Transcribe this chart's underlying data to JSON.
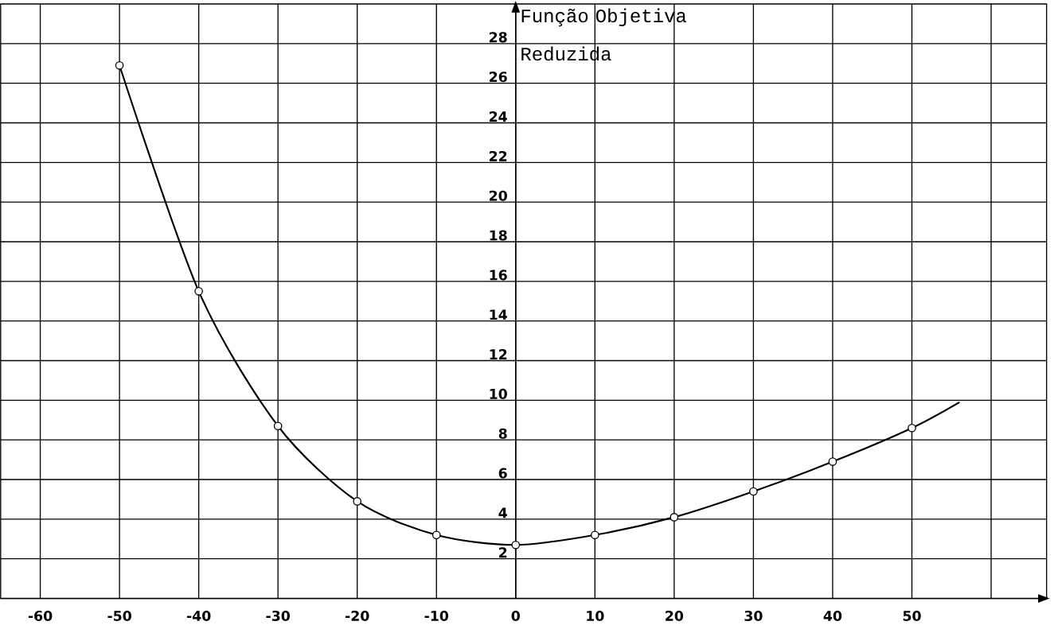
{
  "chart_data": {
    "type": "line",
    "ylabel": "Função Objetiva Reduzida",
    "xlim": [
      -65,
      67
    ],
    "ylim": [
      0,
      30
    ],
    "xticks": [
      -60,
      -50,
      -40,
      -30,
      -20,
      -10,
      0,
      10,
      20,
      30,
      40,
      50,
      {
        "value": 60,
        "label": null
      }
    ],
    "yticks": [
      2,
      4,
      6,
      8,
      10,
      12,
      14,
      16,
      18,
      20,
      22,
      24,
      26,
      28
    ],
    "grid": true,
    "series": [
      {
        "color": "#000000",
        "marker": "none",
        "x": [
          -50,
          -40,
          -30,
          -20,
          -10,
          0,
          10,
          20,
          30,
          40,
          50,
          56
        ],
        "values": [
          26.9,
          15.5,
          8.7,
          4.9,
          3.2,
          2.7,
          3.2,
          4.1,
          5.4,
          6.9,
          8.6,
          9.9
        ]
      },
      {
        "type": "scatter",
        "color": "#000000",
        "marker": "circle",
        "x": [
          -50,
          -40,
          -30,
          -20,
          -10,
          0,
          10,
          20,
          30,
          40,
          50
        ],
        "values": [
          26.9,
          15.5,
          8.7,
          4.9,
          3.2,
          2.7,
          3.2,
          4.1,
          5.4,
          6.9,
          8.6
        ]
      }
    ]
  }
}
